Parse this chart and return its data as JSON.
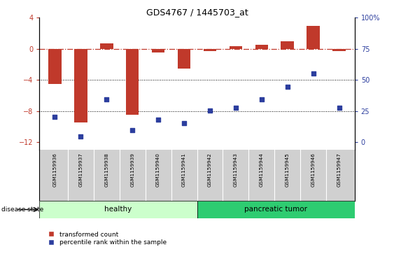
{
  "title": "GDS4767 / 1445703_at",
  "samples": [
    "GSM1159936",
    "GSM1159937",
    "GSM1159938",
    "GSM1159939",
    "GSM1159940",
    "GSM1159941",
    "GSM1159942",
    "GSM1159943",
    "GSM1159944",
    "GSM1159945",
    "GSM1159946",
    "GSM1159947"
  ],
  "transformed_count": [
    -4.5,
    -9.5,
    0.7,
    -8.5,
    -0.5,
    -2.5,
    -0.3,
    0.3,
    0.5,
    1.0,
    3.0,
    -0.3
  ],
  "percentile_rank": [
    25,
    10,
    38,
    15,
    23,
    20,
    30,
    32,
    38,
    48,
    58,
    32
  ],
  "healthy_count": 6,
  "tumor_count": 6,
  "bar_color": "#c0392b",
  "dot_color": "#2c3e9e",
  "healthy_color_light": "#ccffcc",
  "tumor_color": "#2ecc71",
  "left_ylim": [
    -13,
    4
  ],
  "left_yticks": [
    -12,
    -8,
    -4,
    0,
    4
  ],
  "right_yticks": [
    0,
    25,
    50,
    75,
    100
  ],
  "right_ytick_positions": [
    -12,
    -8,
    -4,
    0,
    4
  ],
  "hline_color": "#c0392b",
  "dotted_lines": [
    -4,
    -8
  ]
}
